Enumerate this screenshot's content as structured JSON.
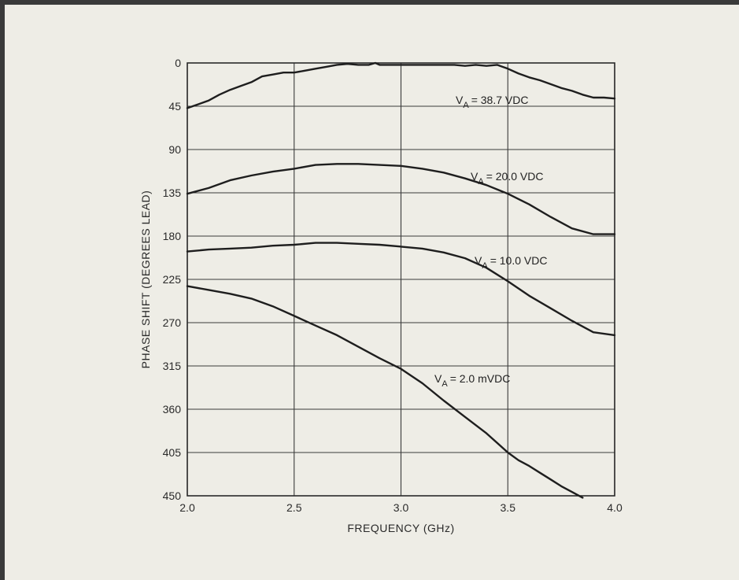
{
  "chart_data": {
    "type": "line",
    "title": "",
    "xlabel": "FREQUENCY (GHz)",
    "ylabel": "PHASE SHIFT (DEGREES LEAD)",
    "xlim": [
      2.0,
      4.0
    ],
    "ylim": [
      0,
      450
    ],
    "y_inverted": true,
    "grid": true,
    "xticks": [
      "2.0",
      "2.5",
      "3.0",
      "3.5",
      "4.0"
    ],
    "yticks": [
      "0",
      "45",
      "90",
      "135",
      "180",
      "225",
      "270",
      "315",
      "360",
      "405",
      "450"
    ],
    "x_tick_values": [
      2.0,
      2.5,
      3.0,
      3.5,
      4.0
    ],
    "y_tick_values": [
      0,
      45,
      90,
      135,
      180,
      225,
      270,
      315,
      360,
      405,
      450
    ],
    "series": [
      {
        "label_main": "V",
        "label_sub": "A",
        "label_value": "= 38.7 VDC",
        "color": "#1e1e1e",
        "x": [
          2.0,
          2.05,
          2.1,
          2.15,
          2.2,
          2.25,
          2.3,
          2.35,
          2.4,
          2.45,
          2.5,
          2.55,
          2.6,
          2.65,
          2.7,
          2.75,
          2.8,
          2.85,
          2.88,
          2.9,
          2.95,
          3.0,
          3.05,
          3.1,
          3.15,
          3.2,
          3.25,
          3.3,
          3.35,
          3.4,
          3.45,
          3.5,
          3.55,
          3.6,
          3.65,
          3.7,
          3.75,
          3.8,
          3.85,
          3.9,
          3.95,
          4.0
        ],
        "y": [
          47,
          43,
          39,
          33,
          28,
          24,
          20,
          14,
          12,
          10,
          10,
          8,
          6,
          4,
          2,
          1,
          2,
          2,
          0,
          2,
          2,
          2,
          2,
          2,
          2,
          2,
          2,
          3,
          2,
          3,
          2,
          6,
          11,
          15,
          18,
          22,
          26,
          29,
          33,
          36,
          36,
          37
        ]
      },
      {
        "label_main": "V",
        "label_sub": "A",
        "label_value": "= 20.0 VDC",
        "color": "#1e1e1e",
        "x": [
          2.0,
          2.1,
          2.2,
          2.3,
          2.4,
          2.5,
          2.6,
          2.7,
          2.8,
          2.9,
          3.0,
          3.1,
          3.2,
          3.3,
          3.4,
          3.5,
          3.6,
          3.7,
          3.8,
          3.9,
          4.0
        ],
        "y": [
          136,
          130,
          122,
          117,
          113,
          110,
          106,
          105,
          105,
          106,
          107,
          110,
          114,
          120,
          127,
          136,
          147,
          160,
          172,
          178,
          178
        ]
      },
      {
        "label_main": "V",
        "label_sub": "A",
        "label_value": "= 10.0 VDC",
        "color": "#1e1e1e",
        "x": [
          2.0,
          2.1,
          2.2,
          2.3,
          2.4,
          2.5,
          2.6,
          2.7,
          2.8,
          2.9,
          3.0,
          3.1,
          3.2,
          3.3,
          3.4,
          3.5,
          3.6,
          3.7,
          3.8,
          3.9,
          4.0
        ],
        "y": [
          196,
          194,
          193,
          192,
          190,
          189,
          187,
          187,
          188,
          189,
          191,
          193,
          197,
          203,
          213,
          227,
          242,
          255,
          268,
          280,
          283
        ]
      },
      {
        "label_main": "V",
        "label_sub": "A",
        "label_value": "= 2.0 mVDC",
        "color": "#1e1e1e",
        "x": [
          2.0,
          2.1,
          2.2,
          2.3,
          2.4,
          2.5,
          2.6,
          2.7,
          2.8,
          2.9,
          3.0,
          3.1,
          3.2,
          3.3,
          3.4,
          3.5,
          3.55,
          3.6,
          3.65,
          3.7,
          3.75,
          3.8,
          3.85
        ],
        "y": [
          232,
          236,
          240,
          245,
          253,
          263,
          273,
          283,
          295,
          307,
          318,
          333,
          351,
          368,
          385,
          405,
          413,
          419,
          426,
          433,
          440,
          446,
          452
        ]
      }
    ]
  }
}
